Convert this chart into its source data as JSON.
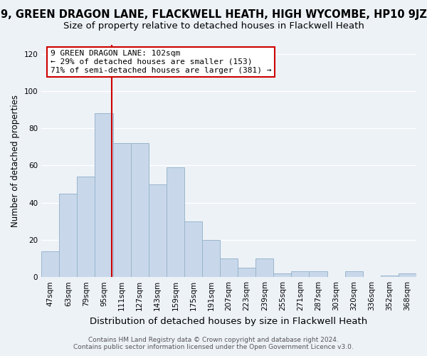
{
  "title": "9, GREEN DRAGON LANE, FLACKWELL HEATH, HIGH WYCOMBE, HP10 9JZ",
  "subtitle": "Size of property relative to detached houses in Flackwell Heath",
  "xlabel": "Distribution of detached houses by size in Flackwell Heath",
  "ylabel": "Number of detached properties",
  "footer_line1": "Contains HM Land Registry data © Crown copyright and database right 2024.",
  "footer_line2": "Contains public sector information licensed under the Open Government Licence v3.0.",
  "bar_labels": [
    "47sqm",
    "63sqm",
    "79sqm",
    "95sqm",
    "111sqm",
    "127sqm",
    "143sqm",
    "159sqm",
    "175sqm",
    "191sqm",
    "207sqm",
    "223sqm",
    "239sqm",
    "255sqm",
    "271sqm",
    "287sqm",
    "303sqm",
    "320sqm",
    "336sqm",
    "352sqm",
    "368sqm"
  ],
  "bar_values": [
    14,
    45,
    54,
    88,
    72,
    72,
    50,
    59,
    30,
    20,
    10,
    5,
    10,
    2,
    3,
    3,
    0,
    3,
    0,
    1,
    2
  ],
  "bar_color": "#c8d8ea",
  "bar_edge_color": "#9ab5cc",
  "vline_color": "#cc0000",
  "annotation_text": "9 GREEN DRAGON LANE: 102sqm\n← 29% of detached houses are smaller (153)\n71% of semi-detached houses are larger (381) →",
  "annotation_box_color": "#ffffff",
  "annotation_box_edge": "#cc0000",
  "ylim": [
    0,
    125
  ],
  "yticks": [
    0,
    20,
    40,
    60,
    80,
    100,
    120
  ],
  "bg_color": "#edf2f7",
  "grid_color": "#ffffff",
  "title_fontsize": 10.5,
  "subtitle_fontsize": 9.5,
  "xlabel_fontsize": 9.5,
  "ylabel_fontsize": 8.5,
  "tick_fontsize": 7.5,
  "footer_fontsize": 6.5
}
